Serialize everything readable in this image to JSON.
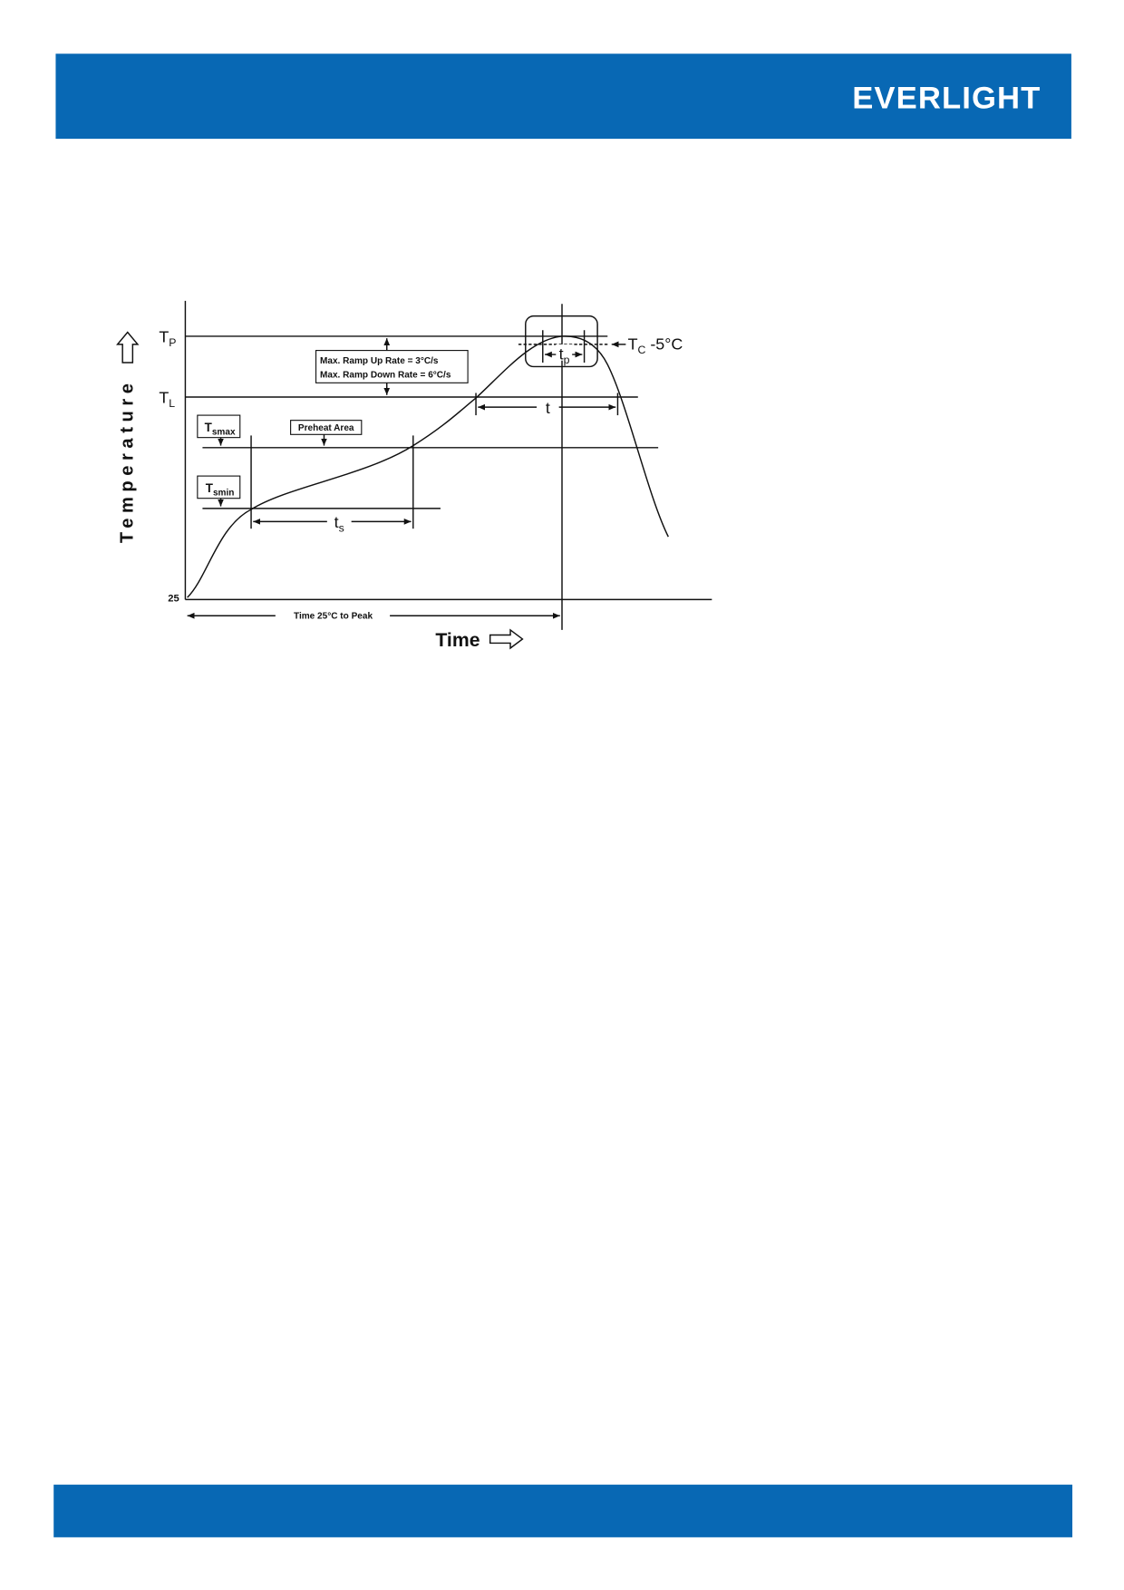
{
  "header": {
    "logo": "EVERLIGHT"
  },
  "diagram": {
    "y_axis_label": "Temperature",
    "x_axis_label": "Time",
    "origin_label": "25",
    "peak_temp": {
      "symbol": "T",
      "sub": "P"
    },
    "liquidus_temp": {
      "symbol": "T",
      "sub": "L"
    },
    "soak_max": {
      "symbol": "T",
      "sub": "smax"
    },
    "soak_min": {
      "symbol": "T",
      "sub": "smin"
    },
    "preheat": "Preheat Area",
    "ramp_up": "Max. Ramp Up Rate = 3°C/s",
    "ramp_down": "Max. Ramp Down Rate = 6°C/s",
    "tc_label": {
      "symbol": "T",
      "sub": "C",
      "rest": " -5°C"
    },
    "tp_label": {
      "symbol": "t",
      "sub": "p"
    },
    "t_label": "t",
    "ts_label": {
      "symbol": "t",
      "sub": "s"
    },
    "time_to_peak": "Time 25°C to Peak"
  }
}
